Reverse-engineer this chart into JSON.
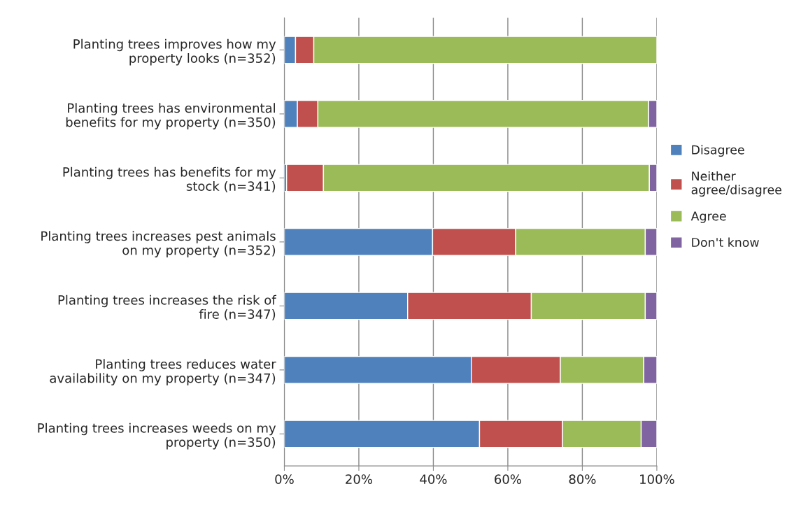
{
  "chart_data": {
    "type": "bar",
    "orientation": "horizontal",
    "stacked": true,
    "categories": [
      "Planting trees improves how my property looks (n=352)",
      "Planting trees has environmental benefits for my property (n=350)",
      "Planting trees has benefits for my stock (n=341)",
      "Planting trees increases pest animals on my property (n=352)",
      "Planting trees increases the risk of fire (n=347)",
      "Planting trees reduces water availability on my property (n=347)",
      "Planting trees increases weeds on my property (n=350)"
    ],
    "series": [
      {
        "name": "Disagree",
        "color": "#4f81bd",
        "values": [
          3.0,
          3.5,
          0.6,
          39.8,
          33.1,
          50.2,
          52.4
        ]
      },
      {
        "name": "Neither agree/disagree",
        "color": "#c0504d",
        "values": [
          4.9,
          5.5,
          9.9,
          22.3,
          33.2,
          23.9,
          22.3
        ]
      },
      {
        "name": "Agree",
        "color": "#9bbb59",
        "values": [
          92.1,
          88.8,
          87.5,
          34.8,
          30.6,
          22.4,
          21.1
        ]
      },
      {
        "name": "Don't know",
        "color": "#8064a2",
        "values": [
          null,
          2.2,
          2.0,
          3.1,
          3.1,
          3.5,
          4.2
        ]
      }
    ],
    "xlim": [
      0,
      100
    ],
    "xticks": [
      {
        "value": 0,
        "label": "0%"
      },
      {
        "value": 20,
        "label": "20%"
      },
      {
        "value": 40,
        "label": "40%"
      },
      {
        "value": 60,
        "label": "60%"
      },
      {
        "value": 80,
        "label": "80%"
      },
      {
        "value": 100,
        "label": "100%"
      }
    ],
    "grid": "x",
    "legend": "right"
  }
}
